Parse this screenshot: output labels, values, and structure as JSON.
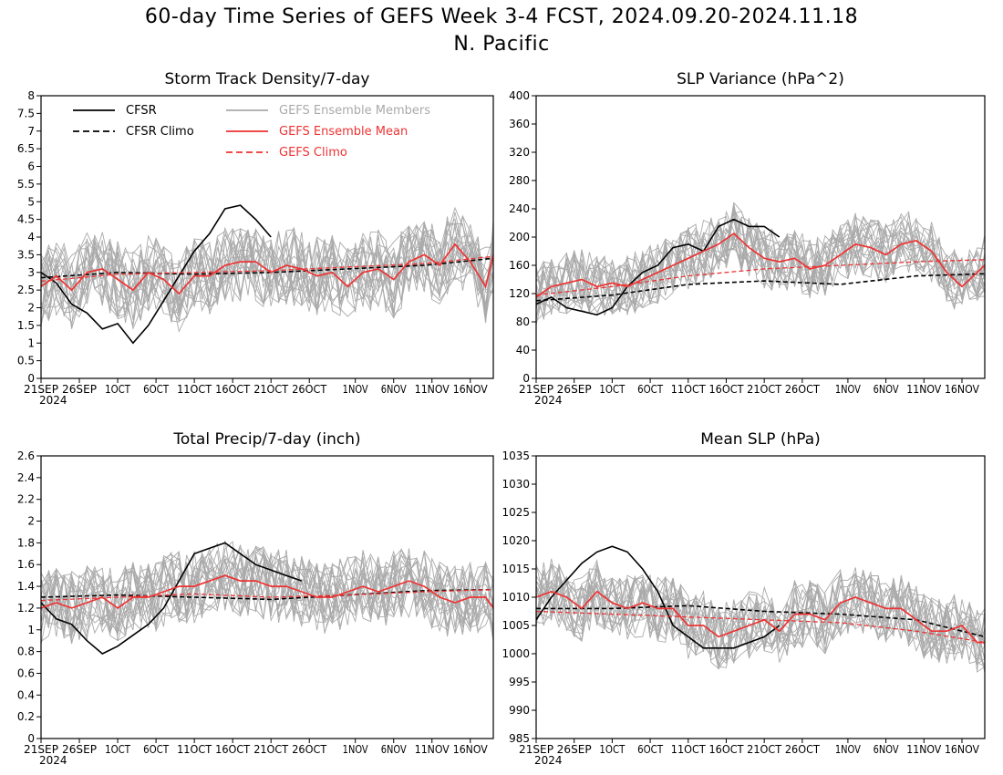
{
  "title": "60-day Time Series of GEFS Week 3-4 FCST, 2024.09.20-2024.11.18",
  "subtitle": "N. Pacific",
  "legend": [
    {
      "label": "CFSR",
      "color": "#000000",
      "dash": false,
      "text_color": "#000000"
    },
    {
      "label": "CFSR Climo",
      "color": "#000000",
      "dash": true,
      "text_color": "#000000"
    },
    {
      "label": "GEFS Ensemble Members",
      "color": "#aaaaaa",
      "dash": false,
      "text_color": "#aaaaaa"
    },
    {
      "label": "GEFS Ensemble Mean",
      "color": "#ee3333",
      "dash": false,
      "text_color": "#ee3333"
    },
    {
      "label": "GEFS Climo",
      "color": "#ee3333",
      "dash": true,
      "text_color": "#ee3333"
    }
  ],
  "colors": {
    "cfsr": "#000000",
    "members": "#aaaaaa",
    "mean": "#ee3333",
    "climo": "#ee3333"
  },
  "chart_data": [
    {
      "type": "line",
      "title": "Storm Track Density/7-day",
      "x_tick_labels": [
        "21SEP",
        "26SEP",
        "1OCT",
        "6OCT",
        "11OCT",
        "16OCT",
        "21OCT",
        "26OCT",
        "1NOV",
        "6NOV",
        "11NOV",
        "16NOV"
      ],
      "x_year_label": "2024",
      "y_tick_labels": [
        "0",
        "0.5",
        "1",
        "1.5",
        "2",
        "2.5",
        "3",
        "3.5",
        "4",
        "4.5",
        "5",
        "5.5",
        "6",
        "6.5",
        "7",
        "7.5",
        "8"
      ],
      "ylim": [
        0,
        8
      ],
      "series": [
        {
          "name": "CFSR",
          "x": [
            0,
            2,
            4,
            6,
            8,
            10,
            12,
            14,
            16,
            18,
            20,
            22,
            24,
            26,
            28,
            30
          ],
          "y": [
            3.0,
            2.7,
            2.1,
            1.85,
            1.4,
            1.55,
            1.0,
            1.5,
            2.2,
            2.9,
            3.6,
            4.1,
            4.8,
            4.9,
            4.5,
            4.0
          ]
        },
        {
          "name": "CFSR Climo",
          "x": [
            0,
            10,
            20,
            30,
            40,
            50,
            59
          ],
          "y": [
            2.85,
            3.0,
            2.95,
            3.0,
            3.1,
            3.2,
            3.4
          ]
        },
        {
          "name": "GEFS Ensemble Mean",
          "x": [
            0,
            2,
            4,
            6,
            8,
            10,
            12,
            14,
            16,
            18,
            20,
            22,
            24,
            26,
            28,
            30,
            32,
            34,
            36,
            38,
            40,
            42,
            44,
            46,
            48,
            50,
            52,
            54,
            56,
            58,
            59
          ],
          "y": [
            2.6,
            2.9,
            2.5,
            3.0,
            3.1,
            2.8,
            2.5,
            3.0,
            2.8,
            2.4,
            2.9,
            2.9,
            3.2,
            3.3,
            3.3,
            3.0,
            3.2,
            3.1,
            2.9,
            3.0,
            2.6,
            3.0,
            3.1,
            2.8,
            3.3,
            3.5,
            3.2,
            3.8,
            3.3,
            2.6,
            3.5
          ]
        },
        {
          "name": "GEFS Climo",
          "x": [
            0,
            10,
            20,
            30,
            40,
            50,
            59
          ],
          "y": [
            2.75,
            2.95,
            3.0,
            3.05,
            3.15,
            3.25,
            3.45
          ]
        }
      ]
    },
    {
      "type": "line",
      "title": "SLP Variance (hPa^2)",
      "x_tick_labels": [
        "21SEP",
        "26SEP",
        "1OCT",
        "6OCT",
        "11OCT",
        "16OCT",
        "21OCT",
        "26OCT",
        "1NOV",
        "6NOV",
        "11NOV",
        "16NOV"
      ],
      "x_year_label": "2024",
      "y_tick_labels": [
        "0",
        "40",
        "80",
        "120",
        "160",
        "200",
        "240",
        "280",
        "320",
        "360",
        "400"
      ],
      "ylim": [
        0,
        400
      ],
      "series": [
        {
          "name": "CFSR",
          "x": [
            0,
            2,
            4,
            6,
            8,
            10,
            12,
            14,
            16,
            18,
            20,
            22,
            24,
            26,
            28,
            30,
            32
          ],
          "y": [
            105,
            115,
            100,
            95,
            90,
            100,
            130,
            150,
            160,
            185,
            190,
            180,
            215,
            225,
            215,
            215,
            200
          ]
        },
        {
          "name": "CFSR Climo",
          "x": [
            0,
            10,
            20,
            30,
            40,
            50,
            59
          ],
          "y": [
            110,
            118,
            133,
            138,
            133,
            145,
            148
          ]
        },
        {
          "name": "GEFS Ensemble Mean",
          "x": [
            0,
            2,
            4,
            6,
            8,
            10,
            12,
            14,
            16,
            18,
            20,
            22,
            24,
            26,
            28,
            30,
            32,
            34,
            36,
            38,
            40,
            42,
            44,
            46,
            48,
            50,
            52,
            54,
            56,
            58,
            59
          ],
          "y": [
            115,
            130,
            135,
            140,
            130,
            135,
            130,
            140,
            150,
            160,
            170,
            180,
            190,
            205,
            185,
            170,
            165,
            170,
            155,
            160,
            175,
            190,
            185,
            175,
            190,
            195,
            180,
            150,
            130,
            150,
            160
          ]
        },
        {
          "name": "GEFS Climo",
          "x": [
            0,
            10,
            20,
            30,
            40,
            50,
            59
          ],
          "y": [
            118,
            130,
            145,
            155,
            160,
            165,
            168
          ]
        }
      ]
    },
    {
      "type": "line",
      "title": "Total Precip/7-day (inch)",
      "x_tick_labels": [
        "21SEP",
        "26SEP",
        "1OCT",
        "6OCT",
        "11OCT",
        "16OCT",
        "21OCT",
        "26OCT",
        "1NOV",
        "6NOV",
        "11NOV",
        "16NOV"
      ],
      "x_year_label": "2024",
      "y_tick_labels": [
        "0",
        "0.2",
        "0.4",
        "0.6",
        "0.8",
        "1",
        "1.2",
        "1.4",
        "1.6",
        "1.8",
        "2",
        "2.2",
        "2.4",
        "2.6"
      ],
      "ylim": [
        0,
        2.6
      ],
      "series": [
        {
          "name": "CFSR",
          "x": [
            0,
            2,
            4,
            6,
            8,
            10,
            12,
            14,
            16,
            18,
            20,
            22,
            24,
            26,
            28,
            30,
            32,
            34
          ],
          "y": [
            1.25,
            1.1,
            1.05,
            0.9,
            0.78,
            0.85,
            0.95,
            1.05,
            1.2,
            1.45,
            1.7,
            1.75,
            1.8,
            1.7,
            1.6,
            1.55,
            1.5,
            1.45
          ]
        },
        {
          "name": "CFSR Climo",
          "x": [
            0,
            10,
            20,
            30,
            40,
            50,
            59
          ],
          "y": [
            1.3,
            1.32,
            1.3,
            1.28,
            1.32,
            1.36,
            1.37
          ]
        },
        {
          "name": "GEFS Ensemble Mean",
          "x": [
            0,
            2,
            4,
            6,
            8,
            10,
            12,
            14,
            16,
            18,
            20,
            22,
            24,
            26,
            28,
            30,
            32,
            34,
            36,
            38,
            40,
            42,
            44,
            46,
            48,
            50,
            52,
            54,
            56,
            58,
            59
          ],
          "y": [
            1.2,
            1.25,
            1.2,
            1.25,
            1.3,
            1.2,
            1.3,
            1.3,
            1.35,
            1.4,
            1.4,
            1.45,
            1.5,
            1.45,
            1.45,
            1.4,
            1.4,
            1.35,
            1.3,
            1.3,
            1.35,
            1.4,
            1.35,
            1.4,
            1.45,
            1.4,
            1.3,
            1.25,
            1.3,
            1.3,
            1.2
          ]
        },
        {
          "name": "GEFS Climo",
          "x": [
            0,
            10,
            20,
            30,
            40,
            50,
            59
          ],
          "y": [
            1.27,
            1.3,
            1.33,
            1.3,
            1.32,
            1.35,
            1.37
          ]
        }
      ]
    },
    {
      "type": "line",
      "title": "Mean SLP (hPa)",
      "x_tick_labels": [
        "21SEP",
        "26SEP",
        "1OCT",
        "6OCT",
        "11OCT",
        "16OCT",
        "21OCT",
        "26OCT",
        "1NOV",
        "6NOV",
        "11NOV",
        "16NOV"
      ],
      "x_year_label": "2024",
      "y_tick_labels": [
        "985",
        "990",
        "995",
        "1000",
        "1005",
        "1010",
        "1015",
        "1020",
        "1025",
        "1030",
        "1035"
      ],
      "ylim": [
        985,
        1035
      ],
      "series": [
        {
          "name": "CFSR",
          "x": [
            0,
            2,
            4,
            6,
            8,
            10,
            12,
            14,
            16,
            18,
            20,
            22,
            24,
            26,
            28,
            30,
            32
          ],
          "y": [
            1006,
            1010,
            1013,
            1016,
            1018,
            1019,
            1018,
            1015,
            1011,
            1005,
            1003,
            1001,
            1001,
            1001,
            1002,
            1003,
            1005
          ]
        },
        {
          "name": "CFSR Climo",
          "x": [
            0,
            10,
            20,
            30,
            40,
            50,
            59
          ],
          "y": [
            1008,
            1008,
            1008.5,
            1007.5,
            1007,
            1006,
            1003
          ]
        },
        {
          "name": "GEFS Ensemble Mean",
          "x": [
            0,
            2,
            4,
            6,
            8,
            10,
            12,
            14,
            16,
            18,
            20,
            22,
            24,
            26,
            28,
            30,
            32,
            34,
            36,
            38,
            40,
            42,
            44,
            46,
            48,
            50,
            52,
            54,
            56,
            58,
            59
          ],
          "y": [
            1010,
            1011,
            1010,
            1008,
            1011,
            1009,
            1008,
            1009,
            1008,
            1008,
            1005,
            1005,
            1003,
            1004,
            1005,
            1006,
            1004,
            1007,
            1007,
            1006,
            1009,
            1010,
            1009,
            1008,
            1008,
            1006,
            1004,
            1004,
            1005,
            1002,
            1002
          ]
        },
        {
          "name": "GEFS Climo",
          "x": [
            0,
            10,
            20,
            30,
            40,
            50,
            59
          ],
          "y": [
            1007.5,
            1007,
            1006.5,
            1006,
            1005.5,
            1004,
            1002
          ]
        }
      ]
    }
  ]
}
